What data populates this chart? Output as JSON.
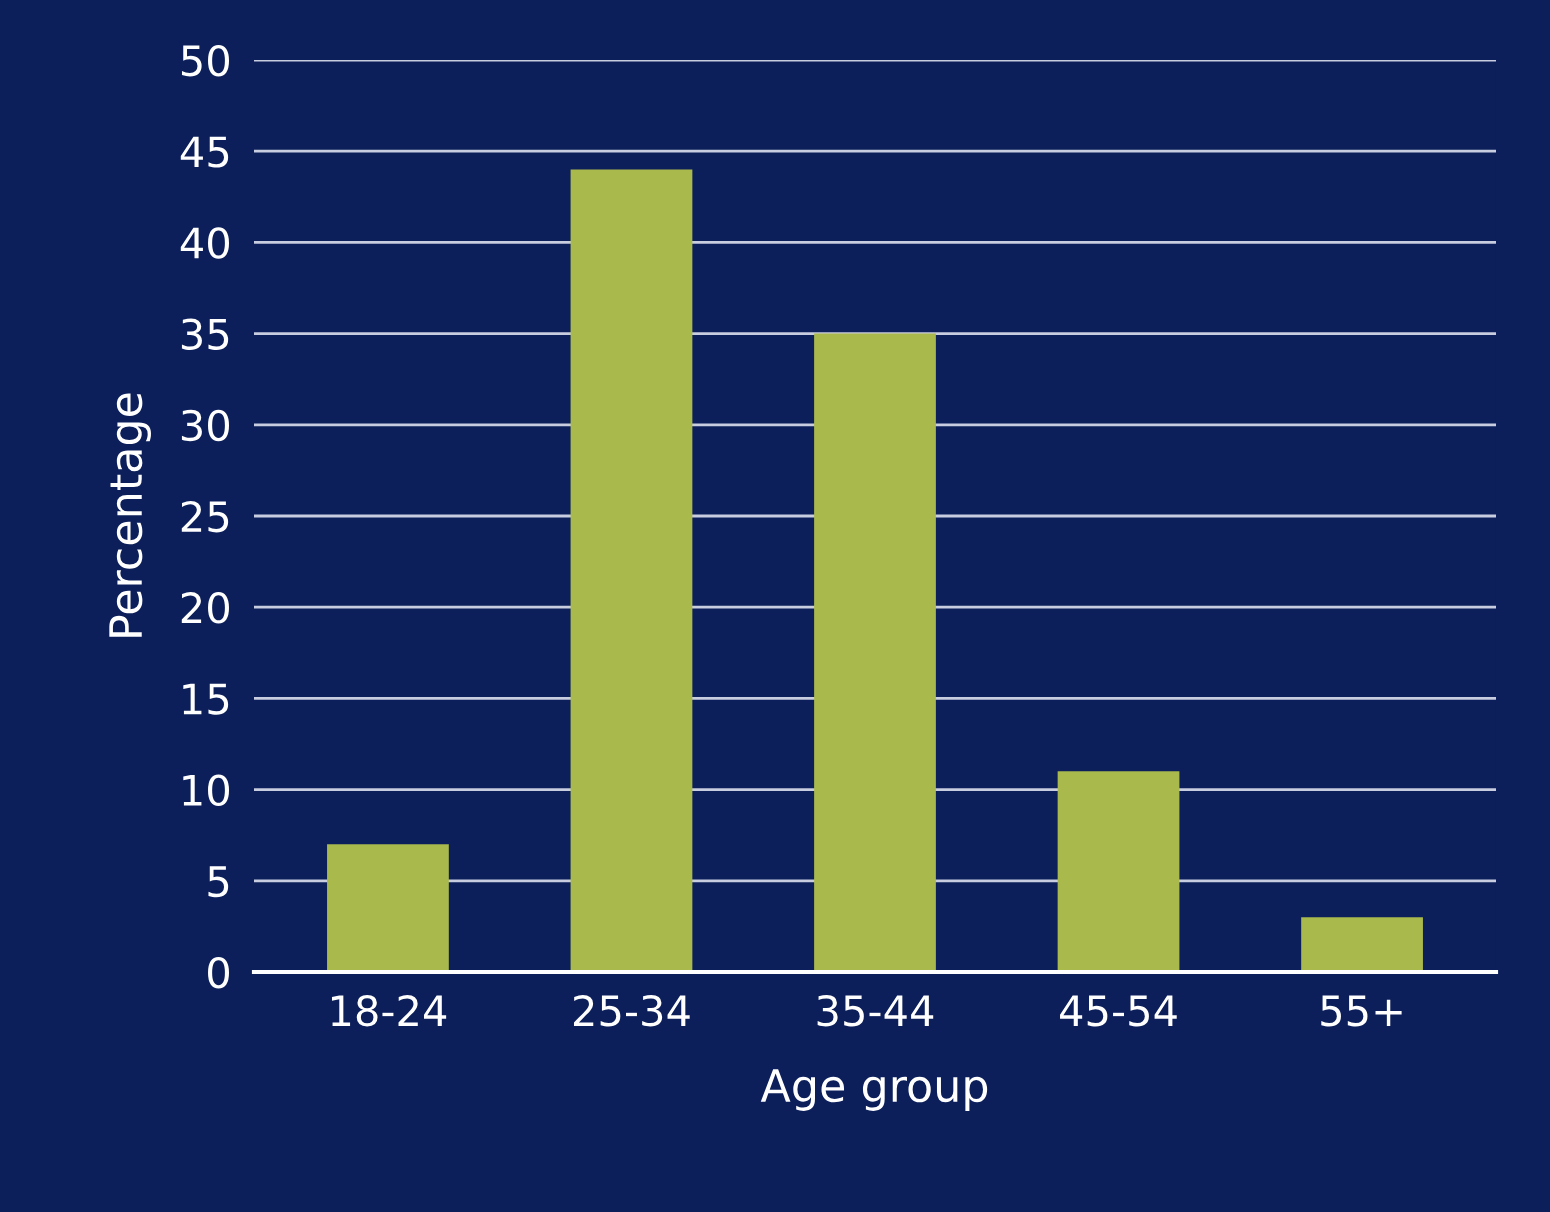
{
  "chart_data": {
    "type": "bar",
    "xlabel": "Age group",
    "ylabel": "Percentage",
    "categories": [
      "18-24",
      "25-34",
      "35-44",
      "45-54",
      "55+"
    ],
    "values": [
      7,
      44,
      35,
      11,
      3
    ],
    "color": "#a9b94c",
    "ylim": [
      0,
      50
    ],
    "yticks": [
      0,
      5,
      10,
      15,
      20,
      25,
      30,
      35,
      40,
      45,
      50
    ],
    "grid": "y"
  }
}
